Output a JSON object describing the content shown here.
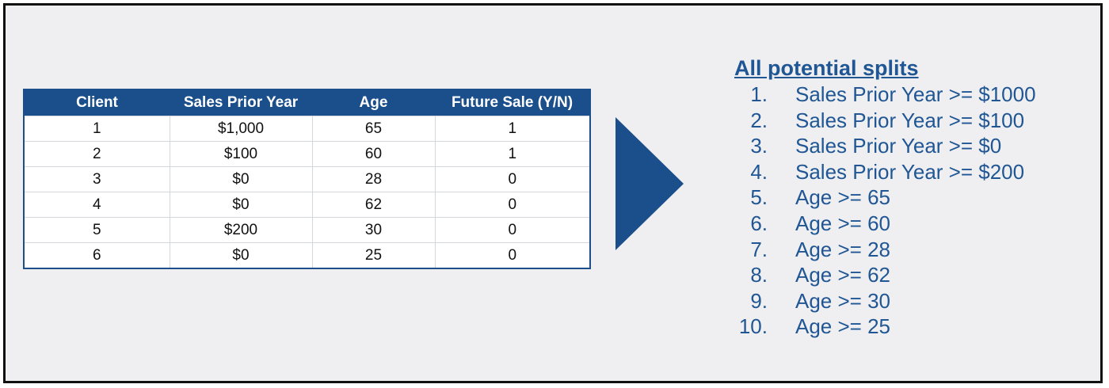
{
  "table": {
    "headers": [
      "Client",
      "Sales Prior Year",
      "Age",
      "Future Sale (Y/N)"
    ],
    "rows": [
      [
        "1",
        "$1,000",
        "65",
        "1"
      ],
      [
        "2",
        "$100",
        "60",
        "1"
      ],
      [
        "3",
        "$0",
        "28",
        "0"
      ],
      [
        "4",
        "$0",
        "62",
        "0"
      ],
      [
        "5",
        "$200",
        "30",
        "0"
      ],
      [
        "6",
        "$0",
        "25",
        "0"
      ]
    ]
  },
  "splits": {
    "title": "All potential splits",
    "items": [
      {
        "num": "1.",
        "text": "Sales Prior Year >= $1000"
      },
      {
        "num": "2.",
        "text": "Sales Prior Year >= $100"
      },
      {
        "num": "3.",
        "text": "Sales Prior Year >= $0"
      },
      {
        "num": "4.",
        "text": "Sales Prior Year >= $200"
      },
      {
        "num": "5.",
        "text": "Age >= 65"
      },
      {
        "num": "6.",
        "text": "Age >= 60"
      },
      {
        "num": "7.",
        "text": "Age >= 28"
      },
      {
        "num": "8.",
        "text": "Age >= 62"
      },
      {
        "num": "9.",
        "text": "Age >= 30"
      },
      {
        "num": "10.",
        "text": "Age >= 25"
      }
    ]
  },
  "colors": {
    "header_bg": "#1a4f8c",
    "arrow": "#1a4f8c",
    "list_text": "#1f5693",
    "slide_bg": "#efeff1"
  },
  "icons": {
    "arrow": "right-triangle-arrow-icon"
  }
}
